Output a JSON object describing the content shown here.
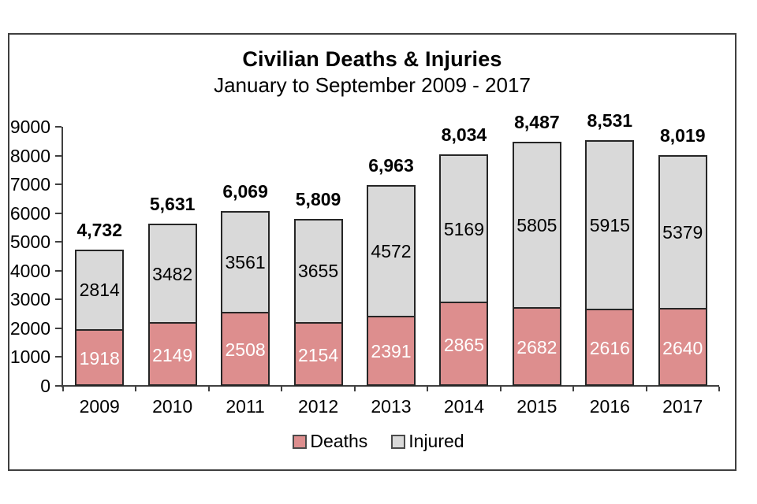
{
  "chart_data": {
    "type": "bar",
    "stacked": true,
    "title": "Civilian Deaths & Injuries",
    "subtitle": "January to September 2009 - 2017",
    "categories": [
      "2009",
      "2010",
      "2011",
      "2012",
      "2013",
      "2014",
      "2015",
      "2016",
      "2017"
    ],
    "series": [
      {
        "name": "Deaths",
        "color": "#DD8E8E",
        "border_color": "#262626",
        "label_color": "#FFFFFF",
        "values": [
          1918,
          2149,
          2508,
          2154,
          2391,
          2865,
          2682,
          2616,
          2640
        ]
      },
      {
        "name": "Injured",
        "color": "#D9D9D9",
        "border_color": "#262626",
        "label_color": "#000000",
        "values": [
          2814,
          3482,
          3561,
          3655,
          4572,
          5169,
          5805,
          5915,
          5379
        ]
      }
    ],
    "total_labels": [
      "4,732",
      "5,631",
      "6,069",
      "5,809",
      "6,963",
      "8,034",
      "8,487",
      "8,531",
      "8,019"
    ],
    "y_ticks": [
      0,
      1000,
      2000,
      3000,
      4000,
      5000,
      6000,
      7000,
      8000,
      9000
    ],
    "ylim": [
      0,
      9000
    ],
    "xlabel": "",
    "ylabel": "",
    "grid": false,
    "legend_position": "bottom",
    "legend": [
      {
        "label": "Deaths",
        "color": "#DD8E8E"
      },
      {
        "label": "Injured",
        "color": "#D9D9D9"
      }
    ],
    "axis_color": "#404040",
    "text_color": "#000000"
  }
}
